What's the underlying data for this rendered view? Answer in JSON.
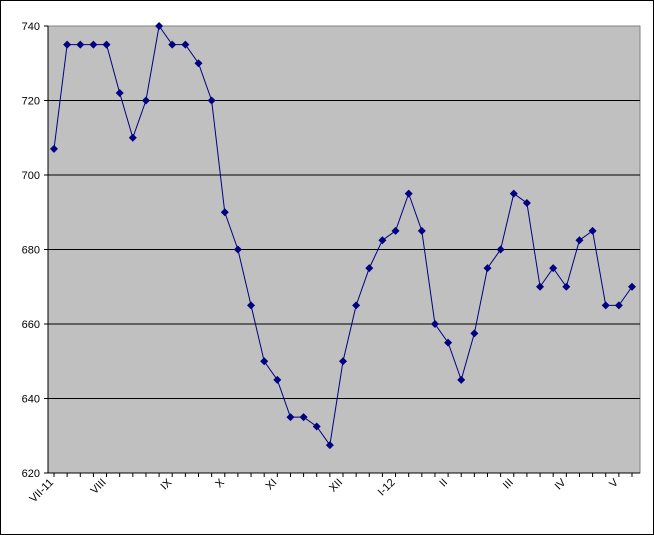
{
  "chart_data": {
    "type": "line",
    "categories": [
      "VII-11",
      null,
      null,
      null,
      "VIII",
      null,
      null,
      null,
      null,
      "IX",
      null,
      null,
      null,
      "X",
      null,
      null,
      null,
      "XI",
      null,
      null,
      null,
      null,
      "XII",
      null,
      null,
      null,
      "I-12",
      null,
      null,
      null,
      "II",
      null,
      null,
      null,
      null,
      "III",
      null,
      null,
      null,
      "IV",
      null,
      null,
      null,
      "V",
      null
    ],
    "series": [
      {
        "color": "#000080",
        "values": [
          707,
          735,
          735,
          735,
          735,
          722,
          710,
          720,
          740,
          735,
          735,
          730,
          720,
          690,
          680,
          665,
          650,
          645,
          635,
          635,
          632.5,
          627.5,
          650,
          665,
          675,
          682.5,
          685,
          695,
          685,
          660,
          655,
          645,
          657.5,
          675,
          680,
          695,
          692.5,
          670,
          675,
          670,
          682.5,
          685,
          665,
          665,
          670
        ]
      }
    ],
    "ylim": [
      620,
      740
    ],
    "yticks": [
      620,
      640,
      660,
      680,
      700,
      720,
      740
    ],
    "grid": true
  }
}
